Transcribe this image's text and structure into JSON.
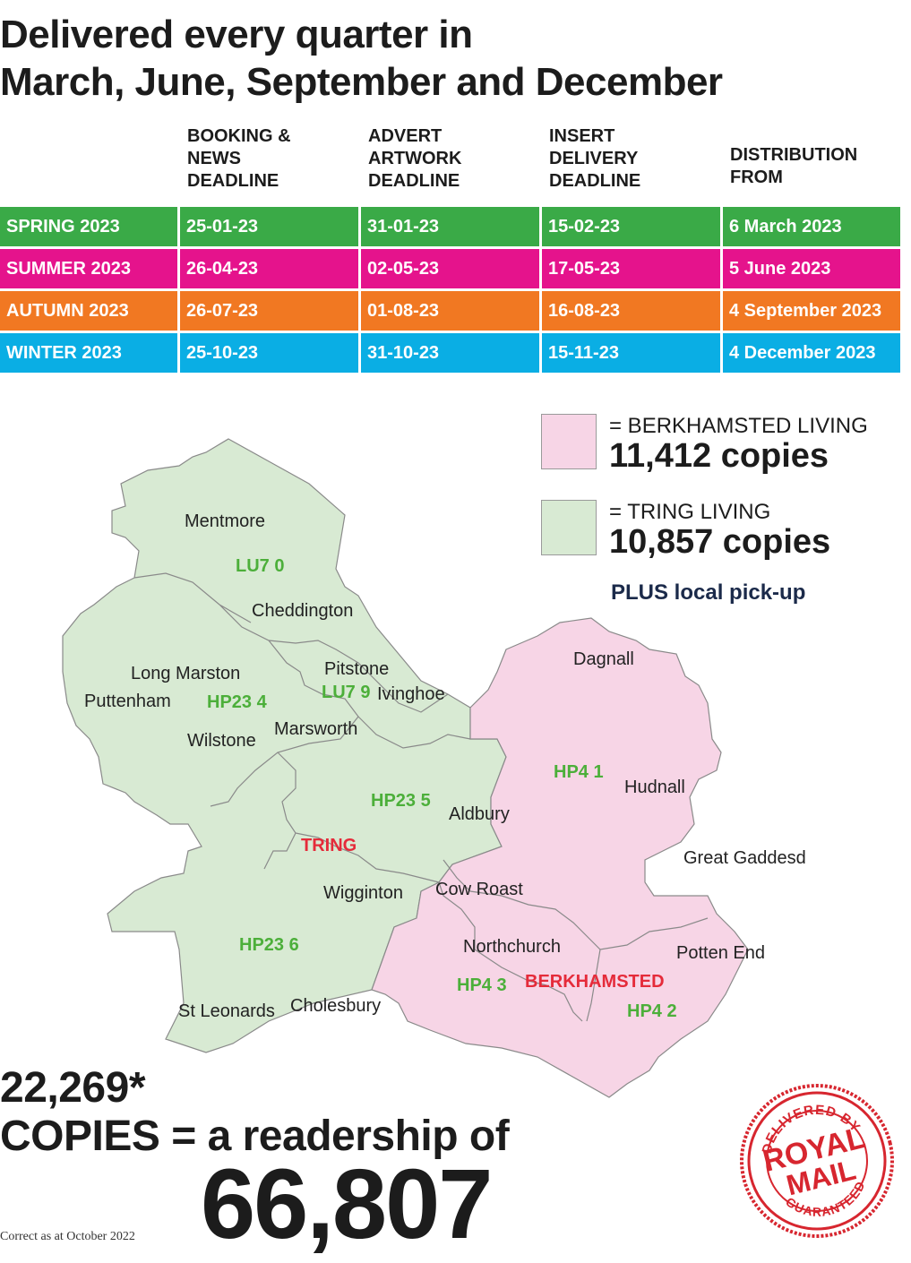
{
  "headline": {
    "line1": "Delivered every quarter in",
    "line2": "March, June, September and December"
  },
  "schedule": {
    "headers": [
      "",
      "BOOKING &\nNEWS\nDEADLINE",
      "ADVERT\nARTWORK\nDEADLINE",
      "INSERT\nDELIVERY\nDEADLINE",
      "DISTRIBUTION\nFROM"
    ],
    "rows": [
      {
        "season": "SPRING 2023",
        "booking": "25-01-23",
        "artwork": "31-01-23",
        "insert": "15-02-23",
        "distribution": "6 March 2023",
        "color": "#3aaa47"
      },
      {
        "season": "SUMMER 2023",
        "booking": "26-04-23",
        "artwork": "02-05-23",
        "insert": "17-05-23",
        "distribution": "5 June 2023",
        "color": "#e5138c"
      },
      {
        "season": "AUTUMN 2023",
        "booking": "26-07-23",
        "artwork": "01-08-23",
        "insert": "16-08-23",
        "distribution": "4 September 2023",
        "color": "#f17822"
      },
      {
        "season": "WINTER 2023",
        "booking": "25-10-23",
        "artwork": "31-10-23",
        "insert": "15-11-23",
        "distribution": "4 December 2023",
        "color": "#0aaee4"
      }
    ]
  },
  "legend": {
    "berkhamsted": {
      "name": "= BERKHAMSTED LIVING",
      "copies": "11,412 copies",
      "color": "#f7d5e6"
    },
    "tring": {
      "name": "= TRING LIVING",
      "copies": "10,857 copies",
      "color": "#d8ead3"
    },
    "pickup": "PLUS local pick-up"
  },
  "map": {
    "places": [
      "Mentmore",
      "Cheddington",
      "Long Marston",
      "Puttenham",
      "Pitstone",
      "Ivinghoe",
      "Wilstone",
      "Marsworth",
      "Dagnall",
      "Hudnall",
      "Aldbury",
      "Great Gaddesden",
      "Wigginton",
      "Cow Roast",
      "Northchurch",
      "Potten End",
      "St Leonards",
      "Cholesbury"
    ],
    "postcodes": [
      "LU7 0",
      "HP23 4",
      "LU7 9",
      "HP4 1",
      "HP23 5",
      "HP23 6",
      "HP4 3",
      "HP4 2"
    ],
    "towns": [
      "TRING",
      "BERKHAMSTED"
    ]
  },
  "totals": {
    "copies_line": "22,269*",
    "readership_line": "COPIES = a readership of",
    "readership": "66,807",
    "note": "Correct as at October 2022"
  },
  "stamp": {
    "top": "DELIVERED BY",
    "line1": "ROYAL",
    "line2": "MAIL",
    "bottom": "GUARANTEED",
    "color": "#d7262f"
  }
}
